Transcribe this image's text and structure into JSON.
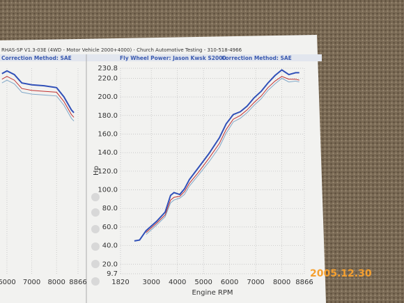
{
  "header": {
    "title": "RHAS-SP V1.3-03E  (4WD - Motor Vehicle 2000+4000) - Church Automotive Testing - 310-518-4966"
  },
  "date_stamp": "2005.12.30",
  "chart_data": [
    {
      "type": "line",
      "subtitle": "Correction Method: SAE",
      "x": [
        5800,
        6000,
        6300,
        6600,
        7000,
        7500,
        8000,
        8300,
        8600,
        8700
      ],
      "xlim": [
        5720,
        8866
      ],
      "xticks": [
        6000,
        7000,
        8000,
        8866
      ],
      "ylim": [
        9.7,
        230.8
      ],
      "grid": true,
      "series": [
        {
          "color": "#3050b8",
          "values": [
            225,
            228,
            224,
            215,
            213,
            212,
            210,
            200,
            186,
            183
          ]
        },
        {
          "color": "#c03030",
          "values": [
            219,
            222,
            218,
            209,
            207,
            206,
            205,
            195,
            181,
            178
          ]
        },
        {
          "color": "#80a8c8",
          "values": [
            215,
            218,
            214,
            205,
            203,
            202,
            201,
            191,
            177,
            174
          ]
        }
      ]
    },
    {
      "type": "line",
      "title": "Fly Wheel Power: Jason Kwsk S2000",
      "subtitle": "Correction Method: SAE",
      "xlabel": "Engine RPM",
      "ylabel": "Hp",
      "x": [
        2350,
        2550,
        2800,
        3200,
        3530,
        3740,
        3870,
        4090,
        4270,
        4460,
        4810,
        5210,
        5610,
        5870,
        6140,
        6410,
        6670,
        6940,
        7210,
        7470,
        7740,
        8000,
        8270,
        8530,
        8670
      ],
      "xlim": [
        1820,
        8866
      ],
      "xticks": [
        1820,
        3000,
        4000,
        5000,
        6000,
        7000,
        8000,
        8866
      ],
      "ylim": [
        9.7,
        230.8
      ],
      "yticks": [
        9.7,
        {
          "value": 20,
          "label": "20.0"
        },
        {
          "value": 40,
          "label": "40.0"
        },
        {
          "value": 60,
          "label": "60.0"
        },
        {
          "value": 80,
          "label": "80.0"
        },
        {
          "value": 100,
          "label": "100.0"
        },
        {
          "value": 120,
          "label": "120.0"
        },
        {
          "value": 140,
          "label": "140.0"
        },
        {
          "value": 160,
          "label": "160.0"
        },
        {
          "value": 180,
          "label": "180.0"
        },
        {
          "value": 200,
          "label": "200.0"
        },
        {
          "value": 220,
          "label": "220.0"
        },
        230.8
      ],
      "grid": true,
      "series": [
        {
          "color": "#3050b8",
          "values": [
            45,
            46,
            56,
            66,
            76,
            94,
            97,
            95,
            101,
            111,
            124,
            139,
            156,
            171,
            181,
            184,
            190,
            199,
            206,
            215,
            223,
            229,
            224,
            226,
            226
          ]
        },
        {
          "color": "#c03030",
          "values": [
            null,
            null,
            54,
            64,
            73,
            89,
            92,
            93,
            98,
            107,
            119,
            134,
            150,
            165,
            176,
            180,
            186,
            194,
            201,
            210,
            217,
            222,
            219,
            219,
            218
          ]
        },
        {
          "color": "#80a8c8",
          "values": [
            null,
            null,
            52,
            62,
            71,
            86,
            89,
            91,
            95,
            104,
            116,
            130,
            146,
            161,
            173,
            177,
            183,
            191,
            198,
            207,
            214,
            220,
            216,
            217,
            216
          ]
        }
      ]
    }
  ]
}
